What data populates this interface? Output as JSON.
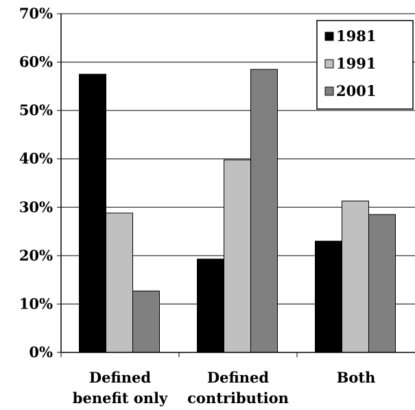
{
  "chart_data": {
    "type": "bar",
    "categories": [
      [
        "Defined",
        "benefit only"
      ],
      [
        "Defined",
        "contribution"
      ],
      [
        "Both"
      ]
    ],
    "series": [
      {
        "name": "1981",
        "color": "#000000",
        "values": [
          57.5,
          19.3,
          23.0
        ]
      },
      {
        "name": "1991",
        "color": "#c0c0c0",
        "values": [
          28.8,
          39.8,
          31.3
        ]
      },
      {
        "name": "2001",
        "color": "#808080",
        "values": [
          12.7,
          58.5,
          28.5
        ]
      }
    ],
    "yticks": [
      "0%",
      "10%",
      "20%",
      "30%",
      "40%",
      "50%",
      "60%",
      "70%"
    ],
    "ylim": [
      0,
      70
    ],
    "grid": true,
    "legend": "top-right"
  }
}
